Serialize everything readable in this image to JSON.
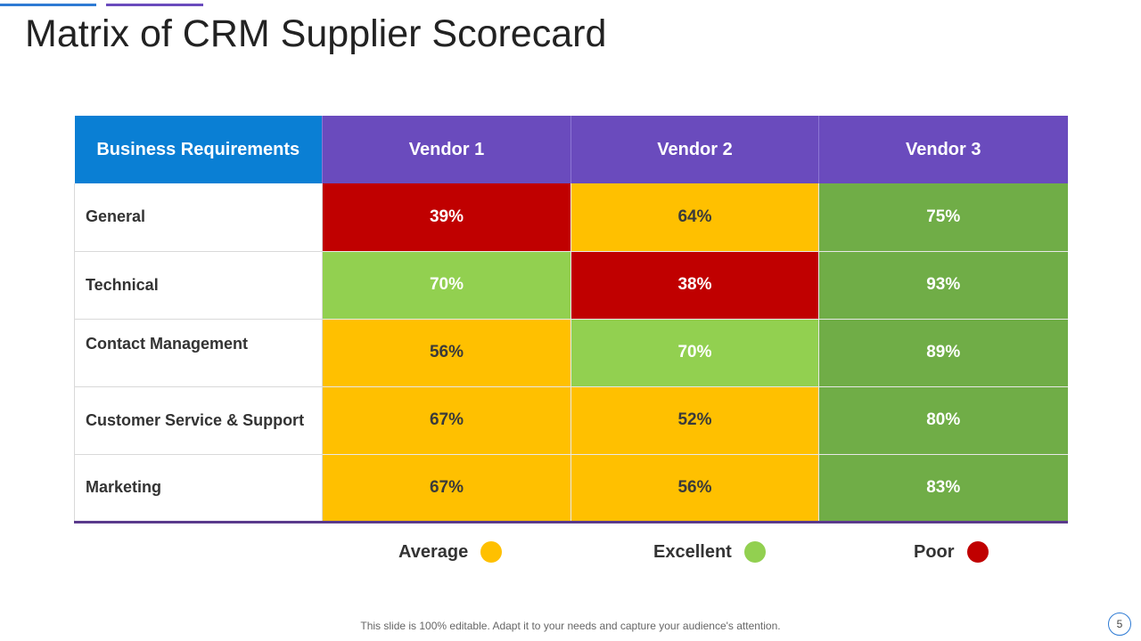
{
  "title": "Matrix of CRM Supplier Scorecard",
  "colors": {
    "average": "#ffc000",
    "excellent": "#92d050",
    "poor": "#c00000",
    "strong": "#70ad47"
  },
  "table": {
    "headers": [
      "Business Requirements",
      "Vendor 1",
      "Vendor 2",
      "Vendor 3"
    ],
    "rows": [
      {
        "label": "General",
        "values": [
          "39%",
          "64%",
          "75%"
        ],
        "ratings": [
          "poor",
          "average",
          "strong"
        ]
      },
      {
        "label": "Technical",
        "values": [
          "70%",
          "38%",
          "93%"
        ],
        "ratings": [
          "excellent",
          "poor",
          "strong"
        ]
      },
      {
        "label": "Contact Management",
        "values": [
          "56%",
          "70%",
          "89%"
        ],
        "ratings": [
          "average",
          "excellent",
          "strong"
        ]
      },
      {
        "label": "Customer Service & Support",
        "values": [
          "67%",
          "52%",
          "80%"
        ],
        "ratings": [
          "average",
          "average",
          "strong"
        ]
      },
      {
        "label": "Marketing",
        "values": [
          "67%",
          "56%",
          "83%"
        ],
        "ratings": [
          "average",
          "average",
          "strong"
        ]
      }
    ]
  },
  "legend": [
    {
      "label": "Average",
      "color": "#ffc000"
    },
    {
      "label": "Excellent",
      "color": "#92d050"
    },
    {
      "label": "Poor",
      "color": "#c00000"
    }
  ],
  "footer_note": "This slide is 100% editable. Adapt it to your needs and capture your audience's attention.",
  "page_number": "5"
}
